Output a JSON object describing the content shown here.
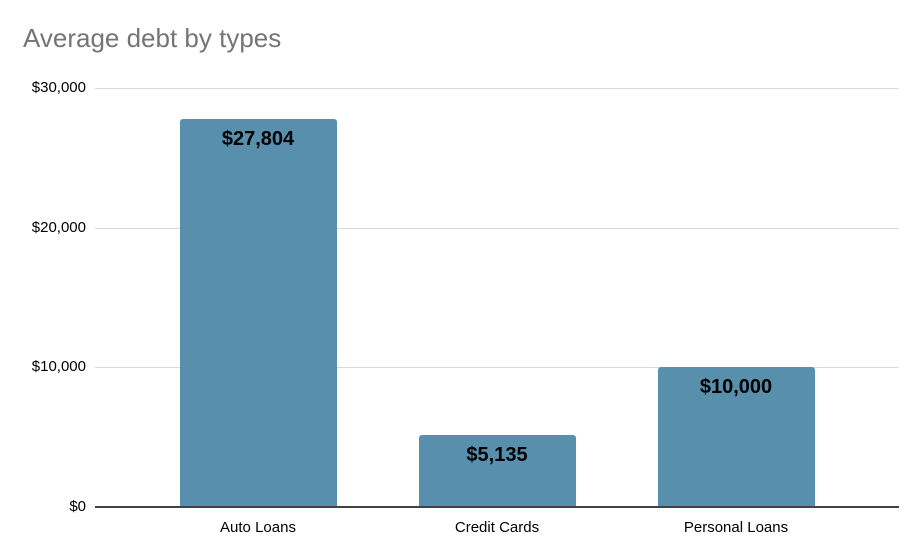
{
  "chart_data": {
    "type": "bar",
    "title": "Average debt by types",
    "categories": [
      "Auto Loans",
      "Credit Cards",
      "Personal Loans"
    ],
    "values": [
      27804,
      5135,
      10000
    ],
    "value_labels": [
      "$27,804",
      "$5,135",
      "$10,000"
    ],
    "xlabel": "",
    "ylabel": "",
    "ylim": [
      0,
      30000
    ],
    "y_ticks": [
      {
        "value": 0,
        "label": "$0"
      },
      {
        "value": 10000,
        "label": "$10,000"
      },
      {
        "value": 20000,
        "label": "$20,000"
      },
      {
        "value": 30000,
        "label": "$30,000"
      }
    ],
    "grid": true,
    "legend_position": "none",
    "colors": {
      "bar": "#588fac",
      "title_text": "#757575",
      "tick_text": "#000000",
      "value_label_text": "#000000",
      "gridline": "#dadada",
      "axis_line": "#424242",
      "background": "#ffffff"
    }
  }
}
